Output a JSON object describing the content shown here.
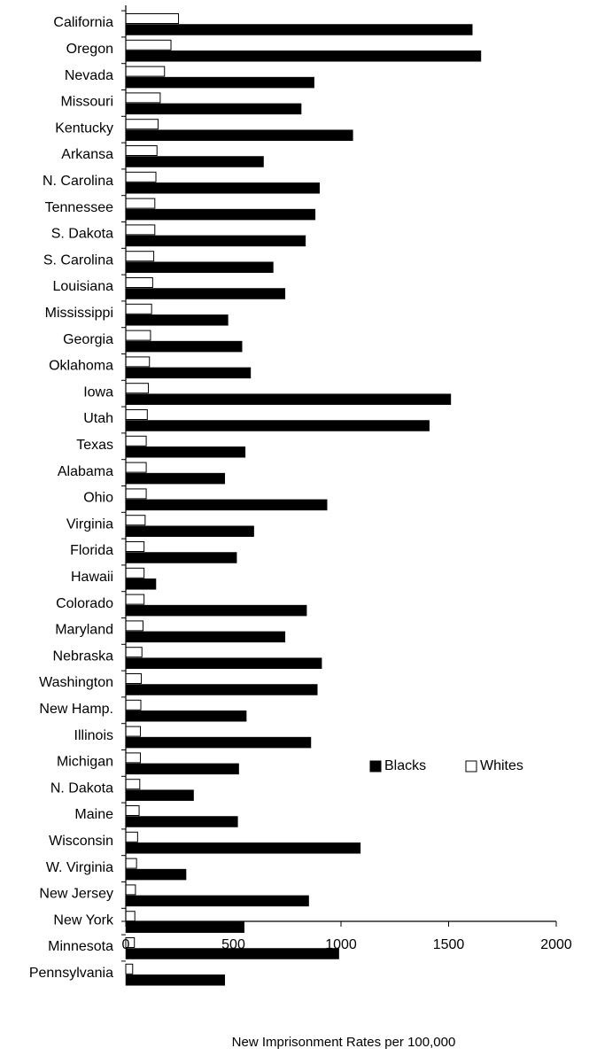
{
  "chart_data": {
    "type": "bar",
    "orientation": "horizontal",
    "title": "",
    "xlabel": "New Imprisonment Rates per 100,000",
    "ylabel": "",
    "xlim": [
      0,
      2000
    ],
    "xticks": [
      0,
      500,
      1000,
      1500,
      2000
    ],
    "grid": false,
    "legend_position": "lower-right",
    "categories": [
      "California",
      "Oregon",
      "Nevada",
      "Missouri",
      "Kentucky",
      "Arkansa",
      "N. Carolina",
      "Tennessee",
      "S. Dakota",
      "S. Carolina",
      "Louisiana",
      "Mississippi",
      "Georgia",
      "Oklahoma",
      "Iowa",
      "Utah",
      "Texas",
      "Alabama",
      "Ohio",
      "Virginia",
      "Florida",
      "Hawaii",
      "Colorado",
      "Maryland",
      "Nebraska",
      "Washington",
      "New Hamp.",
      "Illinois",
      "Michigan",
      "N. Dakota",
      "Maine",
      "Wisconsin",
      "W. Virginia",
      "New Jersey",
      "New York",
      "Minnesota",
      "Pennsylvania"
    ],
    "series": [
      {
        "name": "Whites",
        "color": "#ffffff",
        "stroke": "#000000",
        "values": [
          245,
          210,
          180,
          160,
          150,
          145,
          140,
          135,
          135,
          130,
          125,
          120,
          115,
          110,
          105,
          100,
          95,
          95,
          95,
          90,
          85,
          85,
          85,
          80,
          75,
          72,
          70,
          68,
          68,
          65,
          62,
          55,
          50,
          45,
          42,
          40,
          32
        ]
      },
      {
        "name": "Blacks",
        "color": "#000000",
        "stroke": "#000000",
        "values": [
          1610,
          1650,
          875,
          815,
          1055,
          640,
          900,
          880,
          835,
          685,
          740,
          475,
          540,
          580,
          1510,
          1410,
          555,
          460,
          935,
          595,
          515,
          140,
          840,
          740,
          910,
          890,
          560,
          860,
          525,
          315,
          520,
          1090,
          280,
          850,
          550,
          990,
          460
        ]
      }
    ],
    "legend": [
      {
        "label": "Blacks",
        "series": "Blacks"
      },
      {
        "label": "Whites",
        "series": "Whites"
      }
    ]
  }
}
